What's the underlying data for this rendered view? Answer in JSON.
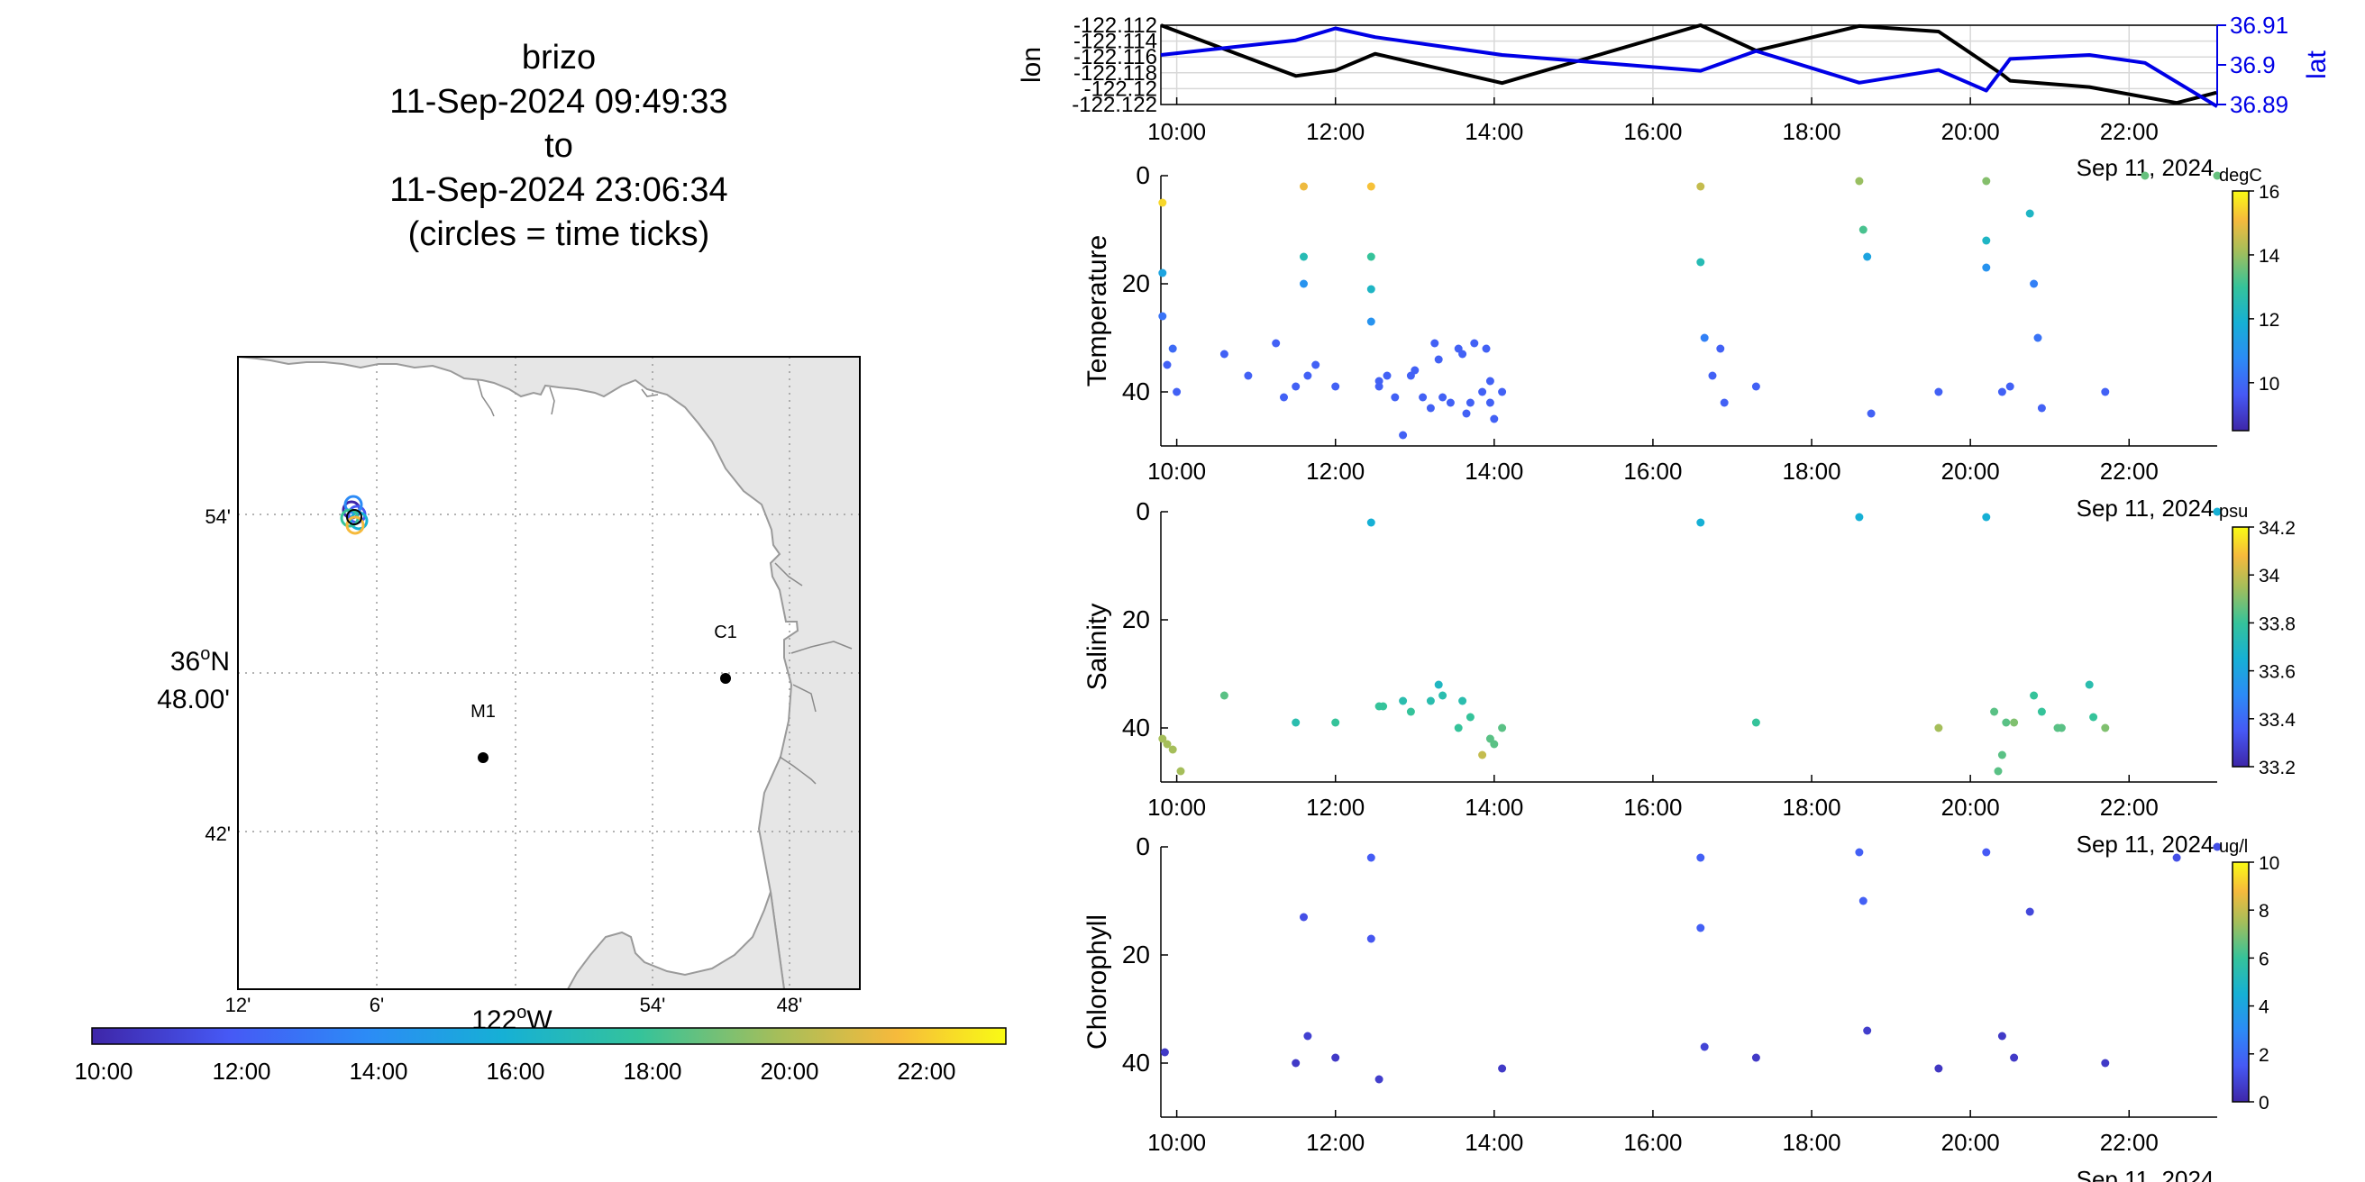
{
  "title_lines": [
    "brizo",
    "11-Sep-2024 09:49:33",
    "to",
    "11-Sep-2024 23:06:34",
    "(circles = time ticks)"
  ],
  "map": {
    "lat_ticks": [
      "54'",
      "42'"
    ],
    "lat_center_label": {
      "deg": "36",
      "sup": "o",
      "suffix": "N",
      "min": "48.00'"
    },
    "lon_ticks": [
      "12'",
      "6'",
      "54'",
      "48'"
    ],
    "lon_center_label": {
      "deg": "122",
      "sup": "o",
      "suffix": "W"
    },
    "stations": [
      {
        "name": "M1",
        "lat": 36.747,
        "lon": -122.022
      },
      {
        "name": "C1",
        "lat": 36.797,
        "lon": -121.847
      }
    ],
    "land_color": "#e6e6e6",
    "colorbar_ticks": [
      "10:00",
      "12:00",
      "14:00",
      "16:00",
      "18:00",
      "20:00",
      "22:00"
    ]
  },
  "time_axis": {
    "ticks": [
      "10:00",
      "12:00",
      "14:00",
      "16:00",
      "18:00",
      "20:00",
      "22:00"
    ],
    "date_label": "Sep 11, 2024",
    "range_hours": [
      9.8,
      23.11
    ]
  },
  "chart_data": [
    {
      "type": "line",
      "xlabel": "",
      "ylabel": "lon",
      "ylabel_right": "lat",
      "ylim_left": [
        -122.122,
        -122.112
      ],
      "ylim_right": [
        36.89,
        36.91
      ],
      "yticks_left": [
        "-122.112",
        "-122.114",
        "-122.116",
        "-122.118",
        "-122.12",
        "-122.122"
      ],
      "yticks_right": [
        "36.91",
        "36.9",
        "36.89"
      ],
      "series": [
        {
          "name": "lon",
          "color": "#000000",
          "axis": "left",
          "x": [
            9.8,
            11.5,
            12.0,
            12.5,
            14.1,
            16.6,
            17.3,
            18.6,
            19.6,
            20.4,
            20.5,
            21.5,
            22.6,
            23.1
          ],
          "y": [
            -122.112,
            -122.1184,
            -122.1177,
            -122.1156,
            -122.1193,
            -122.112,
            -122.1152,
            -122.1121,
            -122.1128,
            -122.1182,
            -122.119,
            -122.1198,
            -122.1218,
            -122.1205
          ]
        },
        {
          "name": "lat",
          "color": "#0000e6",
          "axis": "right",
          "x": [
            9.8,
            11.5,
            12.0,
            12.5,
            14.1,
            16.6,
            17.3,
            18.6,
            19.6,
            20.2,
            20.5,
            21.5,
            22.2,
            23.11
          ],
          "y": [
            36.9025,
            36.9062,
            36.9092,
            36.907,
            36.9025,
            36.8985,
            36.9035,
            36.8955,
            36.8987,
            36.8935,
            36.9015,
            36.9025,
            36.9005,
            36.8895
          ]
        }
      ]
    },
    {
      "type": "scatter",
      "ylabel": "Temperature",
      "ylim": [
        0,
        50
      ],
      "y_reversed": true,
      "yticks": [
        "0",
        "20",
        "40"
      ],
      "colorbar": {
        "unit": "degC",
        "range": [
          8.5,
          16
        ],
        "ticks": [
          "16",
          "14",
          "12",
          "10"
        ]
      },
      "points": [
        [
          9.82,
          5,
          15.5
        ],
        [
          9.82,
          18,
          11.5
        ],
        [
          9.82,
          26,
          10.2
        ],
        [
          9.88,
          35,
          9.8
        ],
        [
          9.95,
          32,
          10
        ],
        [
          10.0,
          40,
          9.8
        ],
        [
          10.6,
          33,
          9.8
        ],
        [
          10.9,
          37,
          9.8
        ],
        [
          11.25,
          31,
          9.8
        ],
        [
          11.35,
          41,
          9.8
        ],
        [
          11.5,
          39,
          9.8
        ],
        [
          11.6,
          2,
          15
        ],
        [
          11.6,
          15,
          12.5
        ],
        [
          11.6,
          20,
          11
        ],
        [
          11.65,
          37,
          9.8
        ],
        [
          11.75,
          35,
          9.8
        ],
        [
          12.0,
          39,
          9.8
        ],
        [
          12.45,
          2,
          15.2
        ],
        [
          12.45,
          15,
          13
        ],
        [
          12.45,
          21,
          12.2
        ],
        [
          12.45,
          27,
          11
        ],
        [
          12.55,
          38,
          9.8
        ],
        [
          12.65,
          37,
          9.8
        ],
        [
          12.55,
          39,
          9.8
        ],
        [
          12.75,
          41,
          9.8
        ],
        [
          12.85,
          48,
          9.8
        ],
        [
          12.95,
          37,
          9.8
        ],
        [
          13.0,
          36,
          9.8
        ],
        [
          13.1,
          41,
          9.8
        ],
        [
          13.2,
          43,
          9.8
        ],
        [
          13.25,
          31,
          9.8
        ],
        [
          13.3,
          34,
          9.8
        ],
        [
          13.35,
          41,
          9.8
        ],
        [
          13.45,
          42,
          9.8
        ],
        [
          13.55,
          32,
          9.8
        ],
        [
          13.6,
          33,
          9.8
        ],
        [
          13.65,
          44,
          9.8
        ],
        [
          13.7,
          42,
          9.8
        ],
        [
          13.75,
          31,
          9.8
        ],
        [
          13.85,
          40,
          9.8
        ],
        [
          13.9,
          32,
          9.8
        ],
        [
          13.95,
          38,
          9.8
        ],
        [
          13.95,
          42,
          9.8
        ],
        [
          14.0,
          45,
          9.8
        ],
        [
          14.1,
          40,
          9.8
        ],
        [
          16.6,
          2,
          14.5
        ],
        [
          16.6,
          16,
          12.5
        ],
        [
          16.65,
          30,
          10.5
        ],
        [
          16.75,
          37,
          9.8
        ],
        [
          16.85,
          32,
          9.8
        ],
        [
          16.9,
          42,
          9.8
        ],
        [
          17.3,
          39,
          9.8
        ],
        [
          18.6,
          1,
          14
        ],
        [
          18.65,
          10,
          13.2
        ],
        [
          18.7,
          15,
          11.5
        ],
        [
          18.75,
          44,
          9.8
        ],
        [
          19.6,
          40,
          9.8
        ],
        [
          20.2,
          1,
          13.8
        ],
        [
          20.2,
          12,
          12.2
        ],
        [
          20.2,
          17,
          11
        ],
        [
          20.4,
          40,
          9.8
        ],
        [
          20.5,
          39,
          9.8
        ],
        [
          20.75,
          7,
          12.2
        ],
        [
          20.8,
          20,
          10.5
        ],
        [
          20.85,
          30,
          10.2
        ],
        [
          20.9,
          43,
          9.8
        ],
        [
          21.7,
          40,
          9.8
        ],
        [
          22.2,
          0,
          13.5
        ],
        [
          23.11,
          0,
          13.5
        ]
      ]
    },
    {
      "type": "scatter",
      "ylabel": "Salinity",
      "ylim": [
        0,
        50
      ],
      "y_reversed": true,
      "yticks": [
        "0",
        "20",
        "40"
      ],
      "colorbar": {
        "unit": "psu",
        "range": [
          33.2,
          34.2
        ],
        "ticks": [
          "34.2",
          "34",
          "33.8",
          "33.6",
          "33.4",
          "33.2"
        ]
      },
      "points": [
        [
          9.82,
          42,
          33.95
        ],
        [
          9.88,
          43,
          33.95
        ],
        [
          9.95,
          44,
          33.95
        ],
        [
          10.05,
          48,
          33.95
        ],
        [
          10.6,
          34,
          33.85
        ],
        [
          11.5,
          39,
          33.75
        ],
        [
          12.0,
          39,
          33.8
        ],
        [
          12.45,
          2,
          33.65
        ],
        [
          12.55,
          36,
          33.8
        ],
        [
          12.6,
          36,
          33.8
        ],
        [
          12.85,
          35,
          33.75
        ],
        [
          12.95,
          37,
          33.8
        ],
        [
          13.2,
          35,
          33.75
        ],
        [
          13.3,
          32,
          33.7
        ],
        [
          13.35,
          34,
          33.75
        ],
        [
          13.55,
          40,
          33.8
        ],
        [
          13.6,
          35,
          33.75
        ],
        [
          13.7,
          38,
          33.8
        ],
        [
          13.85,
          45,
          34.0
        ],
        [
          13.95,
          42,
          33.85
        ],
        [
          14.0,
          43,
          33.85
        ],
        [
          14.1,
          40,
          33.85
        ],
        [
          16.6,
          2,
          33.65
        ],
        [
          17.3,
          39,
          33.8
        ],
        [
          18.6,
          1,
          33.65
        ],
        [
          19.6,
          40,
          33.95
        ],
        [
          20.2,
          1,
          33.65
        ],
        [
          20.3,
          37,
          33.85
        ],
        [
          20.35,
          48,
          33.85
        ],
        [
          20.4,
          45,
          33.85
        ],
        [
          20.45,
          39,
          33.85
        ],
        [
          20.55,
          39,
          33.9
        ],
        [
          20.8,
          34,
          33.8
        ],
        [
          20.9,
          37,
          33.8
        ],
        [
          21.1,
          40,
          33.85
        ],
        [
          21.15,
          40,
          33.85
        ],
        [
          21.5,
          32,
          33.75
        ],
        [
          21.55,
          38,
          33.8
        ],
        [
          21.7,
          40,
          33.9
        ],
        [
          23.11,
          0,
          33.65
        ]
      ]
    },
    {
      "type": "scatter",
      "ylabel": "Chlorophyll",
      "ylim": [
        0,
        50
      ],
      "y_reversed": true,
      "yticks": [
        "0",
        "20",
        "40"
      ],
      "colorbar": {
        "unit": "ug/l",
        "range": [
          0,
          10
        ],
        "ticks": [
          "10",
          "8",
          "6",
          "4",
          "2",
          "0"
        ]
      },
      "points": [
        [
          9.85,
          38,
          0.6
        ],
        [
          11.5,
          40,
          0.6
        ],
        [
          11.65,
          35,
          0.8
        ],
        [
          11.6,
          13,
          1.2
        ],
        [
          12.0,
          39,
          0.6
        ],
        [
          12.45,
          2,
          1.6
        ],
        [
          12.45,
          17,
          1.4
        ],
        [
          12.55,
          43,
          0.7
        ],
        [
          14.1,
          41,
          0.6
        ],
        [
          16.6,
          2,
          1.7
        ],
        [
          16.6,
          15,
          1.7
        ],
        [
          16.65,
          37,
          0.9
        ],
        [
          17.3,
          39,
          0.6
        ],
        [
          18.6,
          1,
          1.7
        ],
        [
          18.65,
          10,
          1.7
        ],
        [
          18.7,
          34,
          0.7
        ],
        [
          19.6,
          41,
          0.5
        ],
        [
          20.2,
          1,
          1.5
        ],
        [
          20.4,
          35,
          0.6
        ],
        [
          20.55,
          39,
          0.6
        ],
        [
          20.75,
          12,
          1.0
        ],
        [
          21.7,
          40,
          0.6
        ],
        [
          22.6,
          2,
          1.2
        ],
        [
          23.11,
          0,
          1.2
        ]
      ]
    }
  ]
}
